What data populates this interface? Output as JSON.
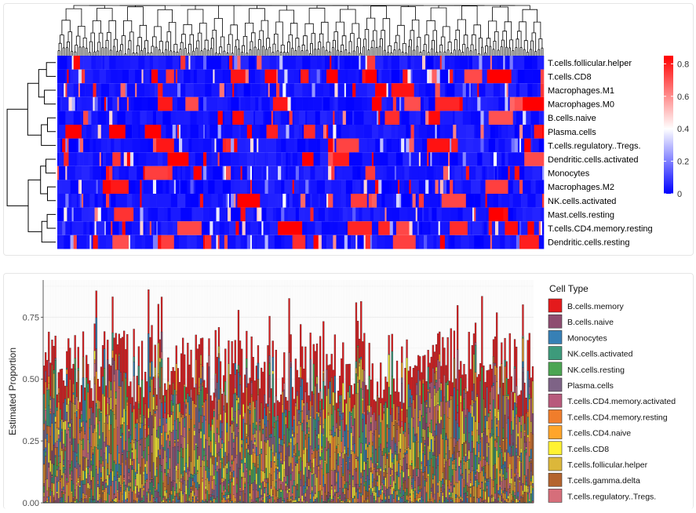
{
  "chart_data": [
    {
      "type": "heatmap",
      "title": "",
      "xlabel": "",
      "ylabel": "",
      "sample_count": 300,
      "rows": [
        "T.cells.follicular.helper",
        "T.cells.CD8",
        "Macrophages.M1",
        "Macrophages.M0",
        "B.cells.naive",
        "Plasma.cells",
        "T.cells.regulatory..Tregs.",
        "Dendritic.cells.activated",
        "Monocytes",
        "Macrophages.M2",
        "NK.cells.activated",
        "Mast.cells.resting",
        "T.cells.CD4.memory.resting",
        "Dendritic.cells.resting"
      ],
      "color_scale": {
        "low": "#0000ff",
        "mid": "#ffffff",
        "high": "#ff0000",
        "min": 0,
        "mid_value": 0.4,
        "max": 0.85
      },
      "colorbar_ticks": [
        "0.8",
        "0.6",
        "0.4",
        "0.2",
        "0"
      ],
      "row_dendrogram": true,
      "column_dendrogram": true
    },
    {
      "type": "bar",
      "stacked": false,
      "sample_count": 300,
      "xlabel": "",
      "ylabel": "Estimated Proportion",
      "ylim": [
        0,
        0.9
      ],
      "yticks": [
        "0.00",
        "0.25",
        "0.50",
        "0.75"
      ],
      "grid": true,
      "legend": {
        "title": "Cell Type",
        "position": "right",
        "entries": [
          {
            "name": "B.cells.memory",
            "color": "#e41a1c"
          },
          {
            "name": "B.cells.naive",
            "color": "#8e4d70"
          },
          {
            "name": "Monocytes",
            "color": "#3780b5"
          },
          {
            "name": "NK.cells.activated",
            "color": "#3d9a7b"
          },
          {
            "name": "NK.cells.resting",
            "color": "#4ba552"
          },
          {
            "name": "Plasma.cells",
            "color": "#7e6386"
          },
          {
            "name": "T.cells.CD4.memory.activated",
            "color": "#b85a7c"
          },
          {
            "name": "T.cells.CD4.memory.resting",
            "color": "#f07d2b"
          },
          {
            "name": "T.cells.CD4.naive",
            "color": "#ffa52a"
          },
          {
            "name": "T.cells.CD8",
            "color": "#fff232"
          },
          {
            "name": "T.cells.follicular.helper",
            "color": "#dcb73a"
          },
          {
            "name": "T.cells.gamma.delta",
            "color": "#b4642e"
          },
          {
            "name": "T.cells.regulatory..Tregs.",
            "color": "#d66e7a"
          }
        ]
      }
    }
  ]
}
